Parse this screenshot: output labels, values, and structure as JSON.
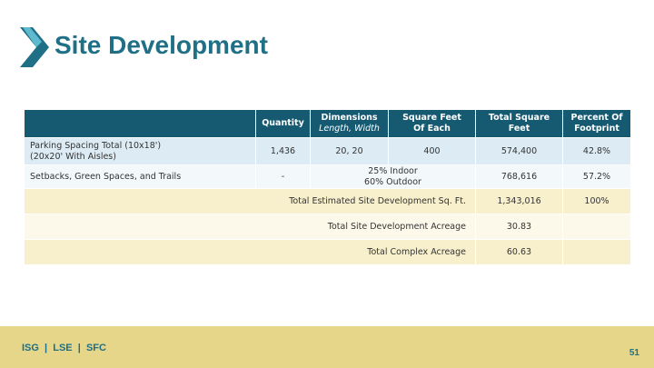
{
  "slide": {
    "title": "Site Development",
    "page_number": "51"
  },
  "footer": {
    "text": "ISG  |  LSE  |  SFC"
  },
  "colors": {
    "accent": "#1f6f86",
    "header_bg": "#165a72",
    "footer_bg": "#e5d68a"
  },
  "table": {
    "headers": [
      "",
      "Quantity",
      {
        "line1": "Dimensions",
        "line2": "Length, Width"
      },
      {
        "line1": "Square Feet",
        "line2": "Of Each"
      },
      {
        "line1": "Total Square",
        "line2": "Feet"
      },
      {
        "line1": "Percent Of",
        "line2": "Footprint"
      }
    ],
    "rows": [
      {
        "label1": "Parking Spacing Total (10x18')",
        "label2": "(20x20' With Aisles)",
        "quantity": "1,436",
        "dimensions": "20, 20",
        "sqft_each": "400",
        "total_sqft": "574,400",
        "percent": "42.8%"
      },
      {
        "label": "Setbacks, Green Spaces, and Trails",
        "quantity": "-",
        "sqft_line1": "25% Indoor",
        "sqft_line2": "60% Outdoor",
        "total_sqft": "768,616",
        "percent": "57.2%"
      }
    ],
    "summary": [
      {
        "label": "Total Estimated Site Development Sq. Ft.",
        "value": "1,343,016",
        "percent": "100%"
      },
      {
        "label": "Total Site Development Acreage",
        "value": "30.83",
        "percent": ""
      },
      {
        "label": "Total Complex Acreage",
        "value": "60.63",
        "percent": ""
      }
    ]
  }
}
